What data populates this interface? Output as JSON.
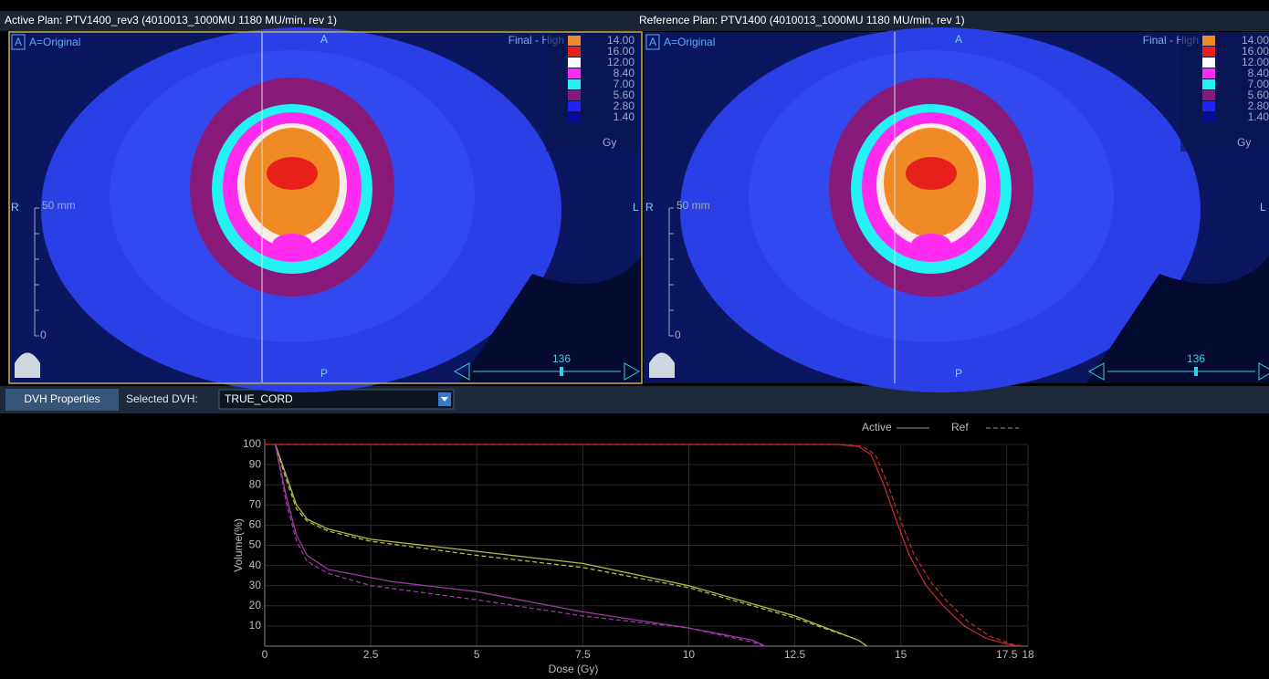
{
  "viewports": [
    {
      "title": "Active Plan: PTV1400_rev3 (4010013_1000MU 1180 MU/min, rev 1)",
      "badge": "A",
      "overlay": "A=Original",
      "top": "A",
      "bottom": "P",
      "left": "R",
      "right": "L",
      "scale_label": "50 mm",
      "scale_zero": "0",
      "dose_title": "Final - High",
      "dose_levels": [
        "14.00",
        "16.00",
        "12.00",
        "8.40",
        "7.00",
        "5.60",
        "2.80",
        "1.40"
      ],
      "dose_unit": "Gy",
      "slice": "136"
    },
    {
      "title": "Reference Plan: PTV1400 (4010013_1000MU 1180 MU/min, rev 1)",
      "badge": "A",
      "overlay": "A=Original",
      "top": "A",
      "bottom": "P",
      "left": "R",
      "right": "L",
      "scale_label": "50 mm",
      "scale_zero": "0",
      "dose_title": "Final - High",
      "dose_levels": [
        "14.00",
        "16.00",
        "12.00",
        "8.40",
        "7.00",
        "5.60",
        "2.80",
        "1.40"
      ],
      "dose_unit": "Gy",
      "slice": "136"
    }
  ],
  "toolbar": {
    "tab": "DVH Properties",
    "selected_label": "Selected DVH:",
    "selected_value": "TRUE_CORD"
  },
  "chart_data": {
    "type": "line",
    "xlabel": "Dose (Gy)",
    "ylabel": "Volume(%)",
    "xlim": [
      0,
      18
    ],
    "ylim": [
      0,
      100
    ],
    "xticks": [
      0,
      2.5,
      5,
      7.5,
      10,
      12.5,
      15,
      17.5,
      18
    ],
    "yticks": [
      10,
      20,
      30,
      40,
      50,
      60,
      70,
      80,
      90,
      100
    ],
    "grid": true,
    "legend": "top-right",
    "series": [
      {
        "name": "Active",
        "color": "#c42a2a",
        "dash": "solid",
        "x": [
          0,
          13.5,
          14,
          14.3,
          14.6,
          14.9,
          15.2,
          15.6,
          16,
          16.5,
          17,
          17.5,
          17.8
        ],
        "values": [
          100,
          100,
          99,
          95,
          80,
          62,
          45,
          30,
          20,
          10,
          4,
          1,
          0
        ]
      },
      {
        "name": "Ref",
        "color": "#c42a2a",
        "dash": "dashed",
        "x": [
          0,
          13.6,
          14.1,
          14.4,
          14.7,
          15,
          15.3,
          15.7,
          16.1,
          16.6,
          17.1,
          17.6,
          17.9
        ],
        "values": [
          100,
          100,
          99,
          95,
          80,
          62,
          46,
          32,
          22,
          12,
          5,
          1,
          0
        ]
      },
      {
        "name": "Active",
        "color": "#b8ba4a",
        "dash": "solid",
        "x": [
          0.25,
          0.5,
          0.75,
          1,
          1.5,
          2.5,
          5,
          7.5,
          10,
          12.5,
          14,
          14.2
        ],
        "values": [
          100,
          85,
          70,
          63,
          58,
          53,
          47,
          41,
          30,
          15,
          3,
          0
        ]
      },
      {
        "name": "Ref",
        "color": "#b8ba4a",
        "dash": "dashed",
        "x": [
          0.25,
          0.5,
          0.75,
          1,
          1.5,
          2.5,
          5,
          7.5,
          10,
          12.5,
          14,
          14.2
        ],
        "values": [
          100,
          83,
          68,
          62,
          57,
          52,
          45,
          39,
          29,
          14,
          3,
          0
        ]
      },
      {
        "name": "Active",
        "color": "#9c3aa2",
        "dash": "solid",
        "x": [
          0.25,
          0.5,
          0.75,
          1,
          1.5,
          2.5,
          3,
          5,
          7.5,
          10,
          11.5,
          11.8
        ],
        "values": [
          100,
          75,
          55,
          45,
          38,
          34,
          32,
          27,
          17,
          9,
          3,
          0
        ]
      },
      {
        "name": "Ref",
        "color": "#9c3aa2",
        "dash": "dashed",
        "x": [
          0.25,
          0.5,
          0.75,
          1,
          1.5,
          2.5,
          5,
          7.5,
          10,
          11.5,
          11.8
        ],
        "values": [
          100,
          72,
          52,
          42,
          36,
          30,
          23,
          15,
          9,
          2,
          0
        ]
      }
    ]
  }
}
